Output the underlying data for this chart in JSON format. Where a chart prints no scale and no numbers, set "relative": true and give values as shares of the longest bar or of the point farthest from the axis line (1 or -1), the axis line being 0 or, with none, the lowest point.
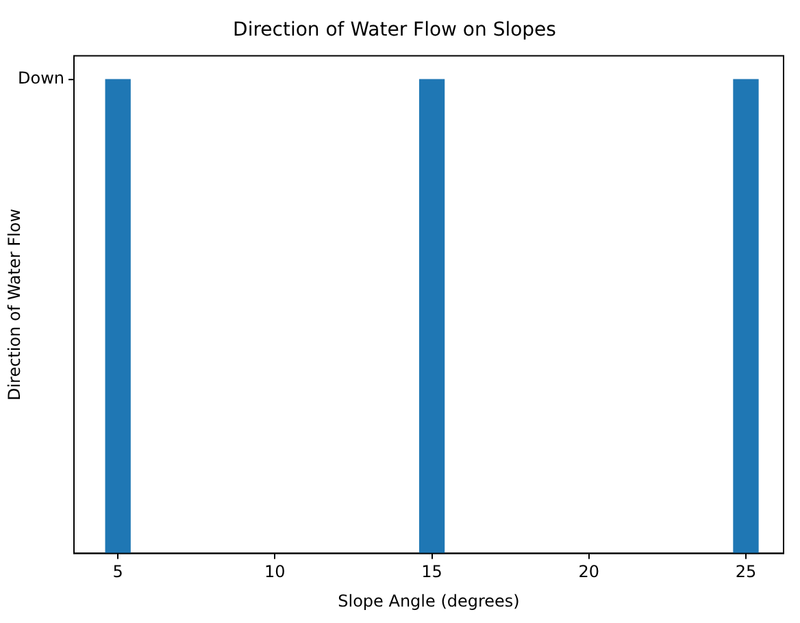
{
  "chart_data": {
    "type": "bar",
    "title": "Direction of Water Flow on Slopes",
    "xlabel": "Slope Angle (degrees)",
    "ylabel": "Direction of Water Flow",
    "x": [
      5,
      15,
      25
    ],
    "values": [
      1,
      1,
      1
    ],
    "relative": true,
    "annotations": [
      "Down"
    ],
    "color": "#1f77b4",
    "xlim": [
      3.6,
      26.2
    ],
    "xticks": [
      5,
      10,
      15,
      20,
      25
    ],
    "grid": false,
    "legend": false
  }
}
